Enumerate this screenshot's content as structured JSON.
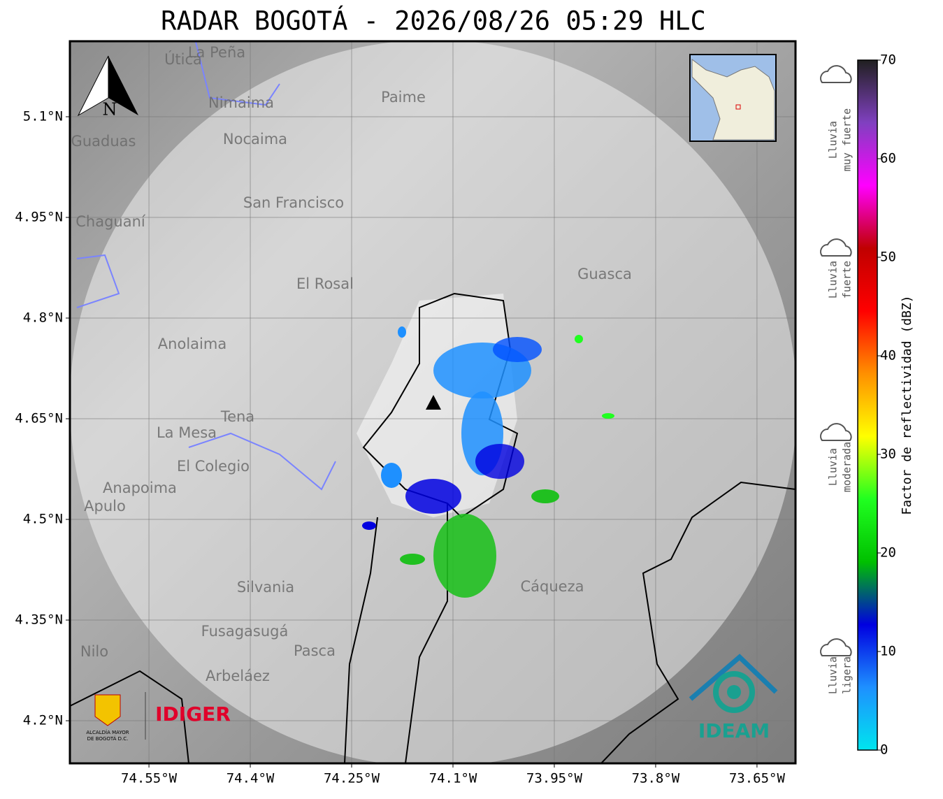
{
  "chart_data": {
    "type": "radar-map",
    "title": "RADAR BOGOTÁ - 2026/08/26 05:29 HLC",
    "xlim": [
      -74.667,
      -73.593
    ],
    "ylim": [
      4.1365,
      5.2125
    ],
    "xticks": [
      {
        "value": -74.55,
        "label": "74.55°W"
      },
      {
        "value": -74.4,
        "label": "74.4°W"
      },
      {
        "value": -74.25,
        "label": "74.25°W"
      },
      {
        "value": -74.1,
        "label": "74.1°W"
      },
      {
        "value": -73.95,
        "label": "73.95°W"
      },
      {
        "value": -73.8,
        "label": "73.8°W"
      },
      {
        "value": -73.65,
        "label": "73.65°W"
      }
    ],
    "yticks": [
      {
        "value": 5.1,
        "label": "5.1°N"
      },
      {
        "value": 4.95,
        "label": "4.95°N"
      },
      {
        "value": 4.8,
        "label": "4.8°N"
      },
      {
        "value": 4.65,
        "label": "4.65°N"
      },
      {
        "value": 4.5,
        "label": "4.5°N"
      },
      {
        "value": 4.35,
        "label": "4.35°N"
      },
      {
        "value": 4.2,
        "label": "4.2°N"
      }
    ],
    "grid": true,
    "colorbar": {
      "label": "Factor de reflectividad (dBZ)",
      "lim": [
        0,
        70
      ],
      "ticks": [
        0,
        10,
        20,
        30,
        40,
        50,
        60,
        70
      ],
      "colors": [
        "#00e5ee",
        "#1e90ff",
        "#0000e0",
        "#00c000",
        "#20ff20",
        "#ffff00",
        "#ff9000",
        "#ff0000",
        "#c00000",
        "#ff00ff",
        "#8040c0",
        "#202020"
      ]
    },
    "legend": [
      {
        "lines": [
          "Lluvia",
          "muy fuerte"
        ]
      },
      {
        "lines": [
          "Lluvia",
          "fuerte"
        ]
      },
      {
        "lines": [
          "Lluvia",
          "moderada"
        ]
      },
      {
        "lines": [
          "Lluvia",
          "ligera"
        ]
      }
    ],
    "places": [
      "La Peña",
      "Útica",
      "Nimaima",
      "Paime",
      "Guaduas",
      "Nocaima",
      "San Francisco",
      "Chaguaní",
      "El Rosal",
      "Anolaima",
      "Tena",
      "La Mesa",
      "El Colegio",
      "Anapoima",
      "Apulo",
      "Silvania",
      "Fusagasugá",
      "Pasca",
      "Arbeláez",
      "Nilo",
      "Cáqueza",
      "Guasca"
    ],
    "north": "N",
    "logos": {
      "idiger": "IDIGER",
      "alcaldia": [
        "ALCALDÍA MAYOR",
        "DE BOGOTÁ D.C."
      ],
      "ideam": "IDEAM"
    }
  }
}
